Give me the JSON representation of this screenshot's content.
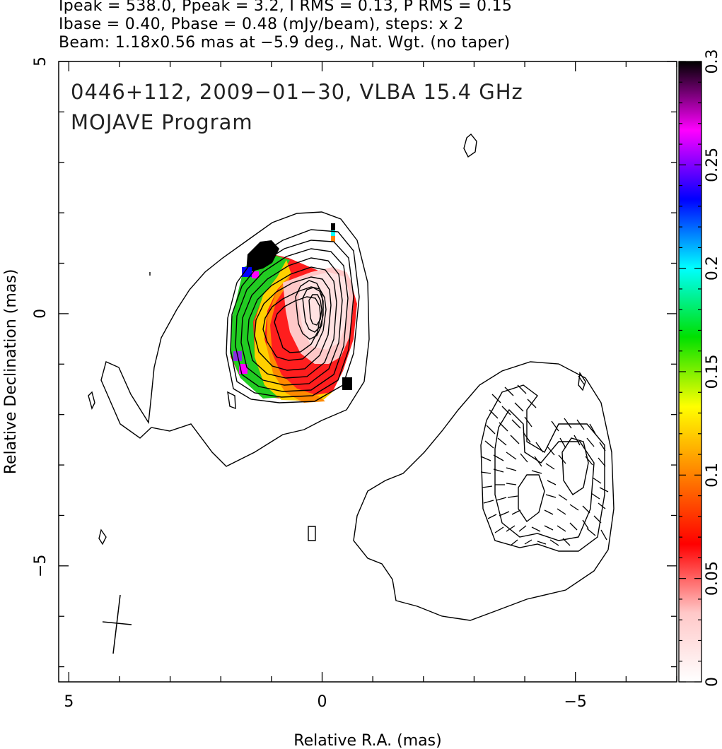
{
  "header": {
    "line1": "Ipeak = 538.0, Ppeak = 3.2, I RMS = 0.13, P RMS = 0.15",
    "line2": "Ibase = 0.40, Pbase = 0.48 (mJy/beam), steps: x 2",
    "line3": "Beam: 1.18x0.56 mas at −5.9 deg., Nat. Wgt. (no taper)"
  },
  "plot_label": {
    "line1": "0446+112, 2009−01−30, VLBA 15.4 GHz",
    "line2": "MOJAVE Program"
  },
  "chart_data": {
    "type": "heatmap",
    "title": "0446+112, 2009-01-30, VLBA 15.4 GHz",
    "subtitle": "MOJAVE Program",
    "xlabel": "Relative R.A. (mas)",
    "ylabel": "Relative Declination (mas)",
    "xlim": [
      5.2,
      -7.0
    ],
    "ylim": [
      -7.3,
      5.0
    ],
    "x_ticks": [
      5,
      0,
      -5
    ],
    "x_tick_labels": [
      "5",
      "0",
      "−5"
    ],
    "y_ticks": [
      5,
      0,
      -5
    ],
    "y_tick_labels": [
      "5",
      "0",
      "−5"
    ],
    "colorbar": {
      "range": [
        0,
        0.3
      ],
      "ticks": [
        0,
        0.05,
        0.1,
        0.15,
        0.2,
        0.25,
        0.3
      ],
      "tick_labels": [
        "0",
        "0.05",
        "0.1",
        "0.15",
        "0.2",
        "0.25",
        "0.3"
      ],
      "colors": [
        "#ffffff",
        "#ffc8c8",
        "#ff0000",
        "#ff8000",
        "#ffff00",
        "#00e000",
        "#00ffff",
        "#0000ff",
        "#ff00ff",
        "#000000"
      ]
    },
    "core": {
      "ra": 0.0,
      "dec": 0.0
    },
    "beam": {
      "major_mas": 1.18,
      "minor_mas": 0.56,
      "pa_deg": -5.9
    },
    "stats": {
      "Ipeak": 538.0,
      "Ppeak": 3.2,
      "I_RMS": 0.13,
      "P_RMS": 0.15,
      "Ibase": 0.4,
      "Pbase": 0.48
    }
  }
}
